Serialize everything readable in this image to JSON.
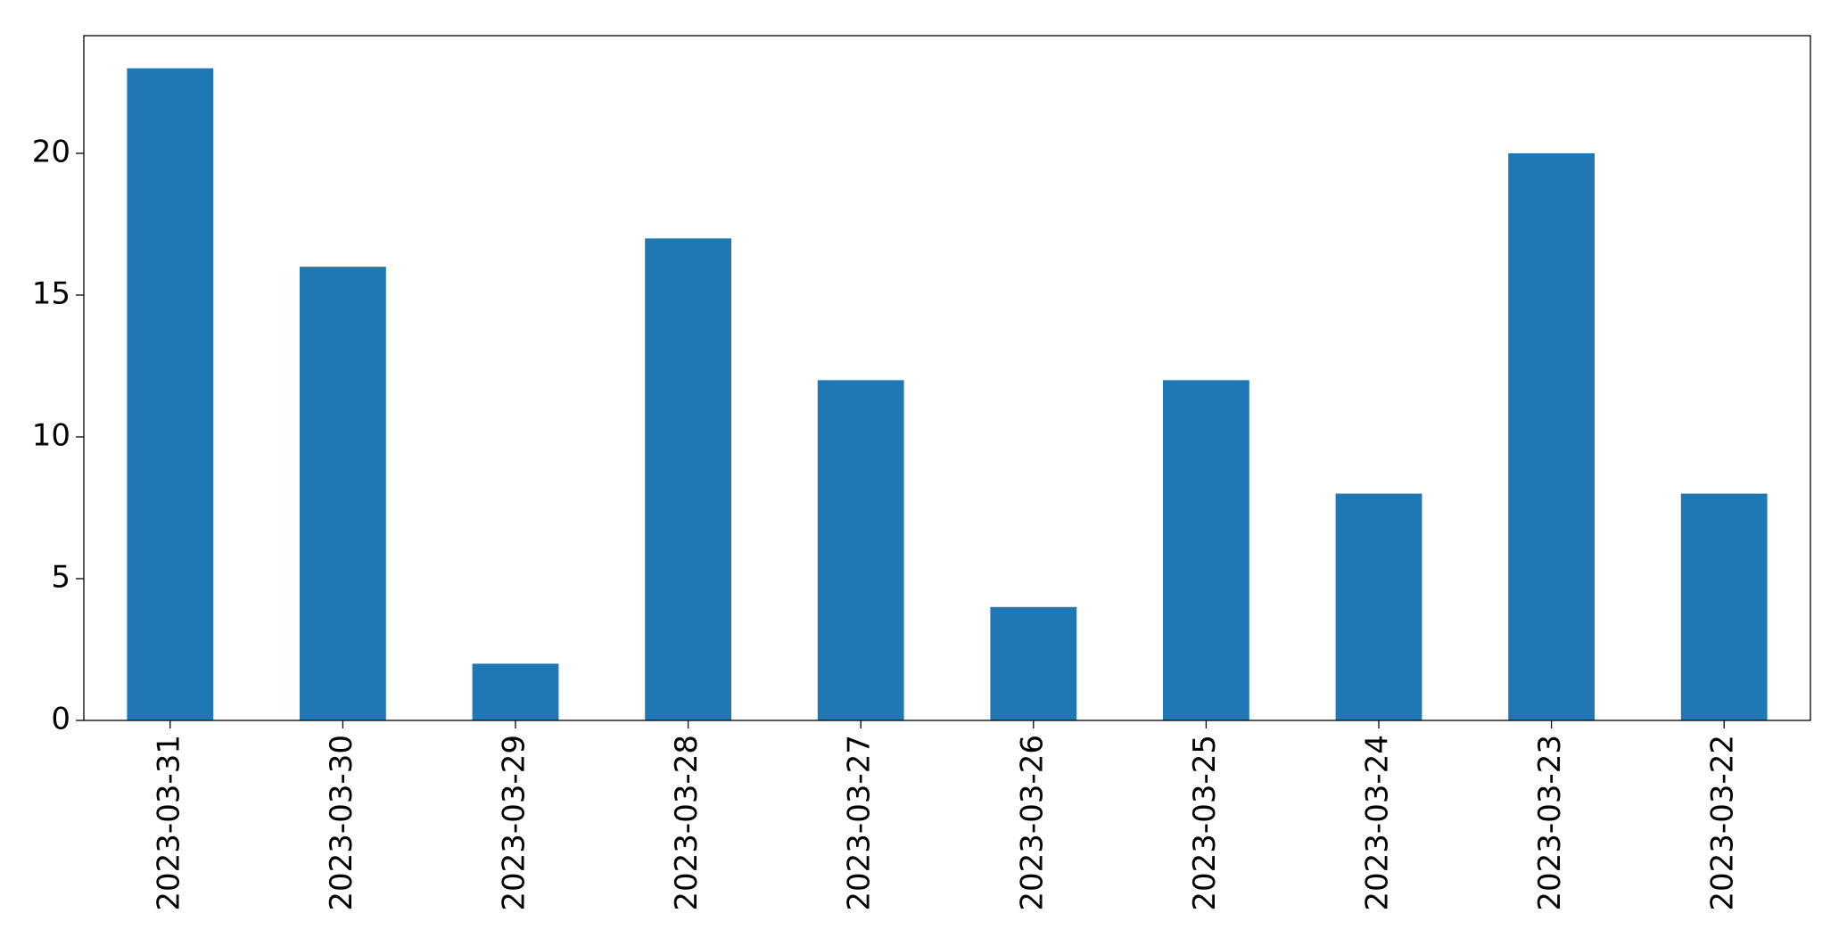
{
  "chart_data": {
    "type": "bar",
    "categories": [
      "2023-03-31",
      "2023-03-30",
      "2023-03-29",
      "2023-03-28",
      "2023-03-27",
      "2023-03-26",
      "2023-03-25",
      "2023-03-24",
      "2023-03-23",
      "2023-03-22"
    ],
    "values": [
      23,
      16,
      2,
      17,
      12,
      4,
      12,
      8,
      20,
      8
    ],
    "color": "#1f77b4",
    "ylim": [
      0,
      24.15
    ],
    "yticks": [
      0,
      5,
      10,
      15,
      20
    ],
    "grid": false
  }
}
